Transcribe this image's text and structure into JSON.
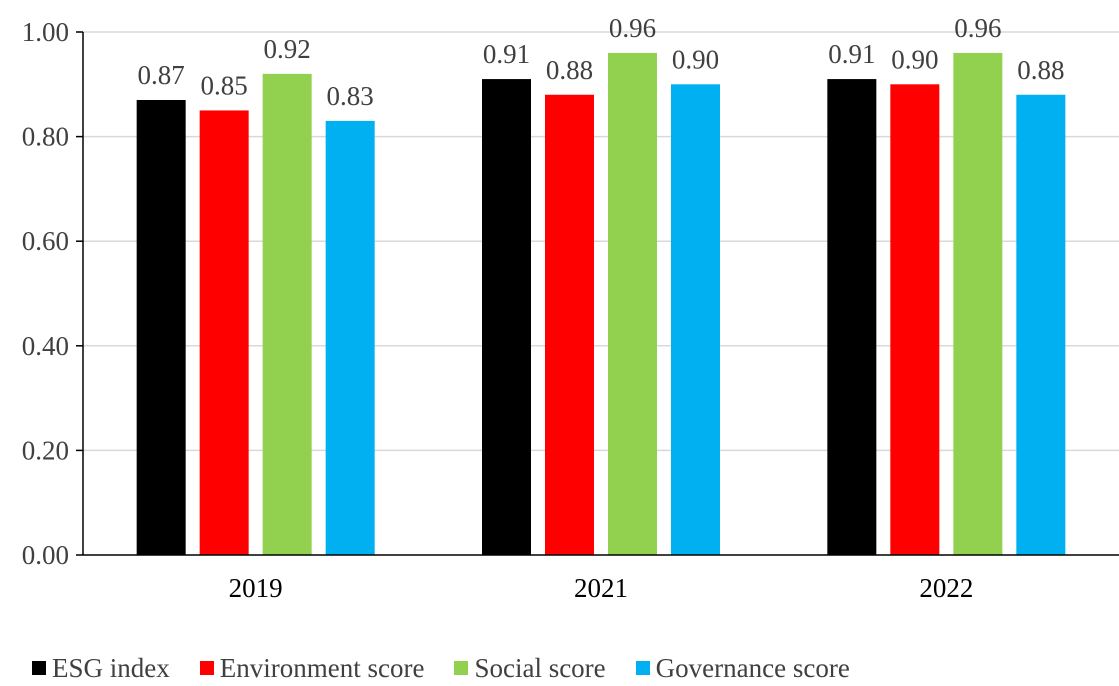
{
  "chart_data": {
    "type": "bar",
    "categories": [
      "2019",
      "2021",
      "2022"
    ],
    "series": [
      {
        "name": "ESG index",
        "color": "#000000",
        "values": [
          0.87,
          0.91,
          0.91
        ]
      },
      {
        "name": "Environment score",
        "color": "#ff0000",
        "values": [
          0.85,
          0.88,
          0.9
        ]
      },
      {
        "name": "Social score",
        "color": "#92d050",
        "values": [
          0.92,
          0.96,
          0.96
        ]
      },
      {
        "name": "Governance score",
        "color": "#00b0f0",
        "values": [
          0.83,
          0.9,
          0.88
        ]
      }
    ],
    "value_labels": [
      [
        "0.87",
        "0.91",
        "0.91"
      ],
      [
        "0.85",
        "0.88",
        "0.90"
      ],
      [
        "0.92",
        "0.96",
        "0.96"
      ],
      [
        "0.83",
        "0.90",
        "0.88"
      ]
    ],
    "yticks": [
      "0.00",
      "0.20",
      "0.40",
      "0.60",
      "0.80",
      "1.00"
    ],
    "ylim": [
      0,
      1.0
    ],
    "grid": true,
    "legend_position": "bottom",
    "title": "",
    "xlabel": "",
    "ylabel": ""
  }
}
